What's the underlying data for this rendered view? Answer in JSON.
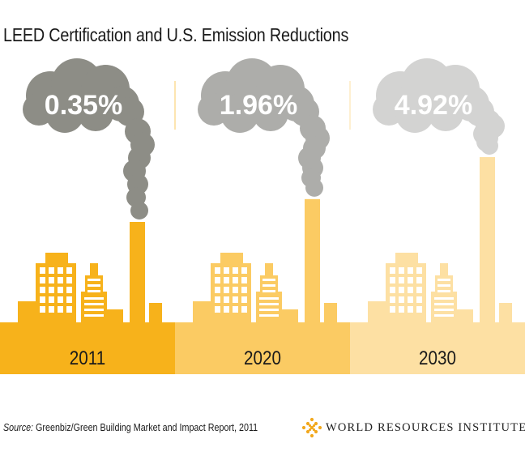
{
  "title": "LEED Certification and U.S. Emission Reductions",
  "source_label": "Source:",
  "source_text": " Greenbiz/Green Building Market and Impact Report, 2011",
  "logo_text": "WORLD RESOURCES INSTITUTE",
  "colors": {
    "panel_2011": "#f7b21b",
    "panel_2020": "#fbcb63",
    "panel_2030": "#fde0a3",
    "smoke_2011": "#8d8d86",
    "smoke_2020": "#adadaa",
    "smoke_2030": "#d3d3d2",
    "logo_accent": "#f2a81d"
  },
  "chart_data": {
    "type": "bar",
    "title": "LEED Certification and U.S. Emission Reductions",
    "categories": [
      "2011",
      "2020",
      "2030"
    ],
    "values": [
      0.35,
      1.96,
      4.92
    ],
    "value_labels": [
      "0.35%",
      "1.96%",
      "4.92%"
    ],
    "unit": "%"
  }
}
